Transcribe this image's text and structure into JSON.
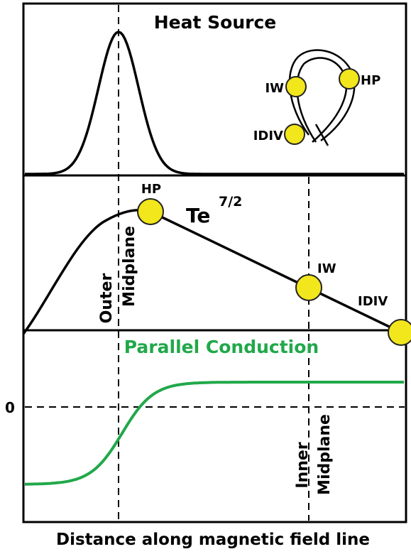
{
  "heat_source": {
    "title": "Heat Source",
    "inset_labels": [
      "IW",
      "HP",
      "IDIV"
    ]
  },
  "temperature": {
    "peak_label": "HP",
    "symbol": "Te",
    "exponent": "7/2",
    "iw_label": "IW",
    "idiv_label": "IDIV",
    "outer_label": [
      "Outer",
      "Midplane"
    ]
  },
  "conduction": {
    "title": "Parallel Conduction",
    "zero_label": "0",
    "inner_label": [
      "Inner",
      "Midplane"
    ]
  },
  "x_axis_label": "Distance along magnetic field line"
}
